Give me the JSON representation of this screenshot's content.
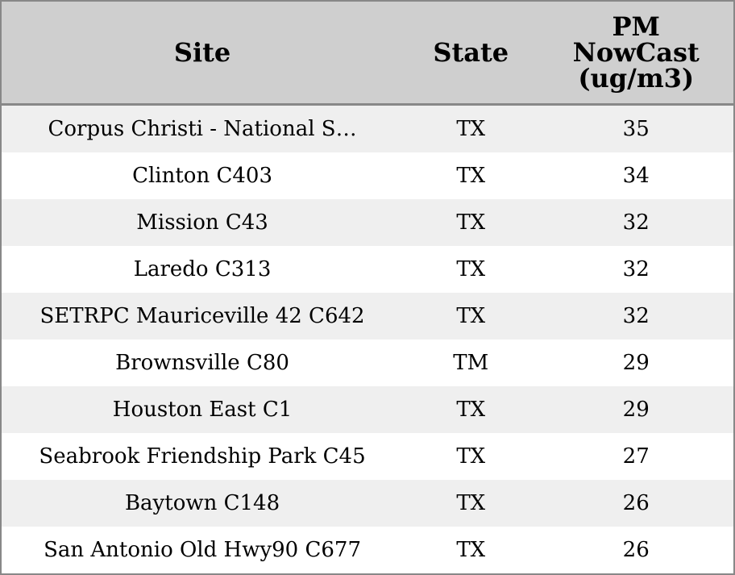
{
  "table": {
    "header": [
      "Site",
      "State",
      "PM NowCast (ug/m3)"
    ],
    "rows": [
      [
        "Corpus Christi - National S…",
        "TX",
        35
      ],
      [
        "Clinton C403",
        "TX",
        34
      ],
      [
        "Mission C43",
        "TX",
        32
      ],
      [
        "Laredo C313",
        "TX",
        32
      ],
      [
        "SETRPC Mauriceville 42 C642",
        "TX",
        32
      ],
      [
        "Brownsville C80",
        "TM",
        29
      ],
      [
        "Houston East C1",
        "TX",
        29
      ],
      [
        "Seabrook Friendship Park C45",
        "TX",
        27
      ],
      [
        "Baytown C148",
        "TX",
        26
      ],
      [
        "San Antonio Old Hwy90 C677",
        "TX",
        26
      ]
    ]
  }
}
